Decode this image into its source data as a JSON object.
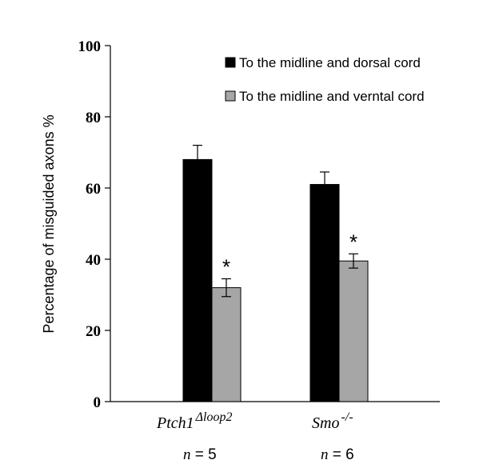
{
  "chart_data": {
    "type": "bar",
    "ylabel": "Percentage of misguided axons  %",
    "ylim": [
      0,
      100
    ],
    "yticks": [
      0,
      20,
      40,
      60,
      80,
      100
    ],
    "categories": [
      {
        "main": "Ptch1",
        "sup": "Δloop2",
        "n_prefix": "n",
        "n_text": " = 5"
      },
      {
        "main": "Smo",
        "sup": "-/-",
        "n_prefix": "n",
        "n_text": " = 6"
      }
    ],
    "series": [
      {
        "name": "To the midline and dorsal cord",
        "color": "#000000",
        "values": [
          68,
          61
        ],
        "errors": [
          4,
          3.5
        ]
      },
      {
        "name": "To the midline and verntal cord",
        "color": "#a6a6a6",
        "values": [
          32,
          39.5
        ],
        "errors": [
          2.5,
          2
        ]
      }
    ],
    "annotations": [
      {
        "text": "*",
        "series": 1,
        "category": 0
      },
      {
        "text": "*",
        "series": 1,
        "category": 1
      }
    ],
    "legend_position": "top-right",
    "grid": false
  }
}
